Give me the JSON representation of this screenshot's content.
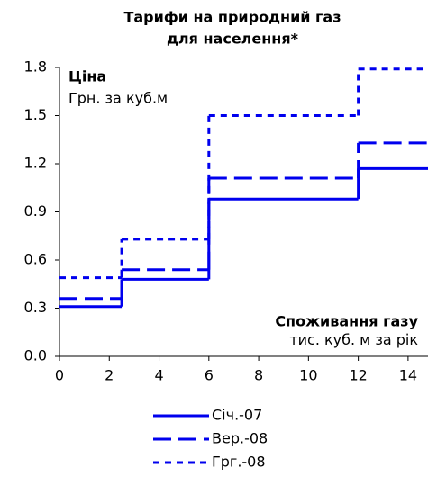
{
  "chart_data": {
    "type": "line",
    "step": "post",
    "title": [
      "Тарифи на природний газ",
      "для населення*"
    ],
    "y_label": "Ціна",
    "y_unit": "Грн. за куб.м",
    "x_label": "Споживання газу",
    "x_unit": "тис. куб. м за рік",
    "x": [
      0,
      2.5,
      6,
      12
    ],
    "series": [
      {
        "name": "Січ.-07",
        "color": "#0000ee",
        "dash": "solid",
        "values": [
          0.31,
          0.48,
          0.98,
          1.17
        ]
      },
      {
        "name": "Вер.-08",
        "color": "#0000ee",
        "dash": "dash",
        "values": [
          0.36,
          0.54,
          1.11,
          1.33
        ]
      },
      {
        "name": "Грг.-08",
        "color": "#0000ee",
        "dash": "dot",
        "values": [
          0.49,
          0.73,
          1.5,
          1.79
        ]
      }
    ],
    "xlim": [
      0,
      14.8
    ],
    "xticks": [
      0,
      2,
      4,
      6,
      8,
      10,
      12,
      14
    ],
    "ylim": [
      0,
      1.8
    ],
    "yticks": [
      {
        "value": 0,
        "label": "0.0"
      },
      0.3,
      0.6,
      0.9,
      1.2,
      1.5,
      1.8
    ],
    "grid": false,
    "legend": "bottom"
  }
}
